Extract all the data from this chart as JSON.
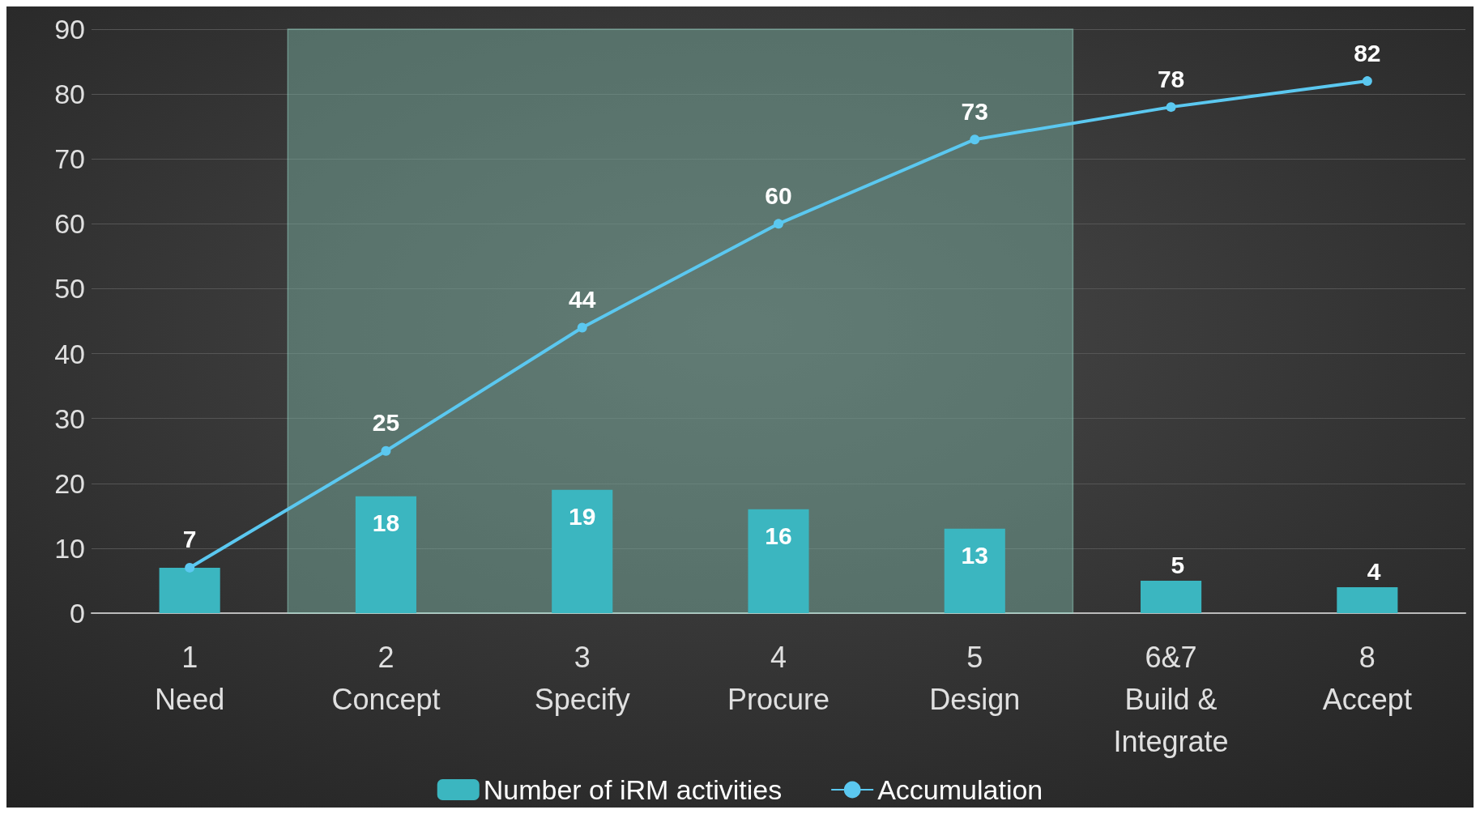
{
  "chart_data": {
    "type": "bar",
    "categories": [
      "1\nNeed",
      "2\nConcept",
      "3\nSpecify",
      "4\nProcure",
      "5\nDesign",
      "6&7\nBuild &\nIntegrate",
      "8\nAccept"
    ],
    "series": [
      {
        "name": "Number of iRM activities",
        "color": "#3bb6c0",
        "values": [
          7,
          18,
          19,
          16,
          13,
          5,
          4
        ],
        "value_labels": [
          null,
          "18",
          "19",
          "16",
          "13",
          "5",
          "4"
        ]
      },
      {
        "name": "Accumulation",
        "type": "line",
        "color": "#5bc8f0",
        "values": [
          7,
          25,
          44,
          60,
          73,
          78,
          82
        ],
        "value_labels": [
          "7",
          "25",
          "44",
          "60",
          "73",
          "78",
          "82"
        ]
      }
    ],
    "ylim": [
      0,
      90
    ],
    "yticks": [
      0,
      10,
      20,
      30,
      40,
      50,
      60,
      70,
      80,
      90
    ],
    "bands": [
      {
        "axis": "x",
        "from": "2\nConcept",
        "to": "5\nDesign",
        "color": "#7fb8a8"
      }
    ],
    "grid": "y",
    "legend": "bottom",
    "marker": "circle",
    "line_style": "solid"
  }
}
